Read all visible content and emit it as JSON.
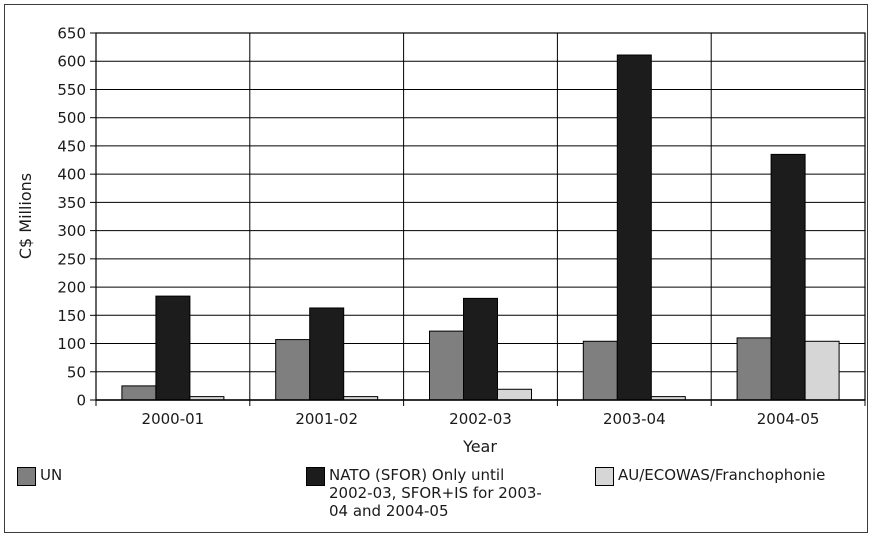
{
  "chart_data": {
    "type": "bar",
    "categories": [
      "2000-01",
      "2001-02",
      "2002-03",
      "2003-04",
      "2004-05"
    ],
    "series": [
      {
        "name": "UN",
        "values": [
          25,
          107,
          122,
          104,
          110
        ]
      },
      {
        "name": "NATO (SFOR) Only until 2002-03, SFOR+IS for 2003-04 and 2004-05",
        "values": [
          184,
          163,
          180,
          611,
          435
        ]
      },
      {
        "name": "AU/ECOWAS/Franchophonie",
        "values": [
          6,
          6,
          19,
          6,
          104
        ]
      }
    ],
    "xlabel": "Year",
    "ylabel": "C$ Millions",
    "ylim": [
      0,
      650
    ],
    "yticks": [
      0,
      50,
      100,
      150,
      200,
      250,
      300,
      350,
      400,
      450,
      500,
      550,
      600,
      650
    ],
    "grid": "horizontal and vertical",
    "legend_position": "bottom",
    "colors": [
      "#7f7f7f",
      "#1c1c1c",
      "#d6d6d6"
    ]
  },
  "legend": {
    "items": [
      {
        "label_lines": [
          "UN"
        ],
        "color": "#7f7f7f"
      },
      {
        "label_lines": [
          "NATO (SFOR) Only until",
          "2002-03, SFOR+IS for 2003-",
          "04 and 2004-05"
        ],
        "color": "#1c1c1c"
      },
      {
        "label_lines": [
          "AU/ECOWAS/Franchophonie"
        ],
        "color": "#d6d6d6"
      }
    ]
  }
}
